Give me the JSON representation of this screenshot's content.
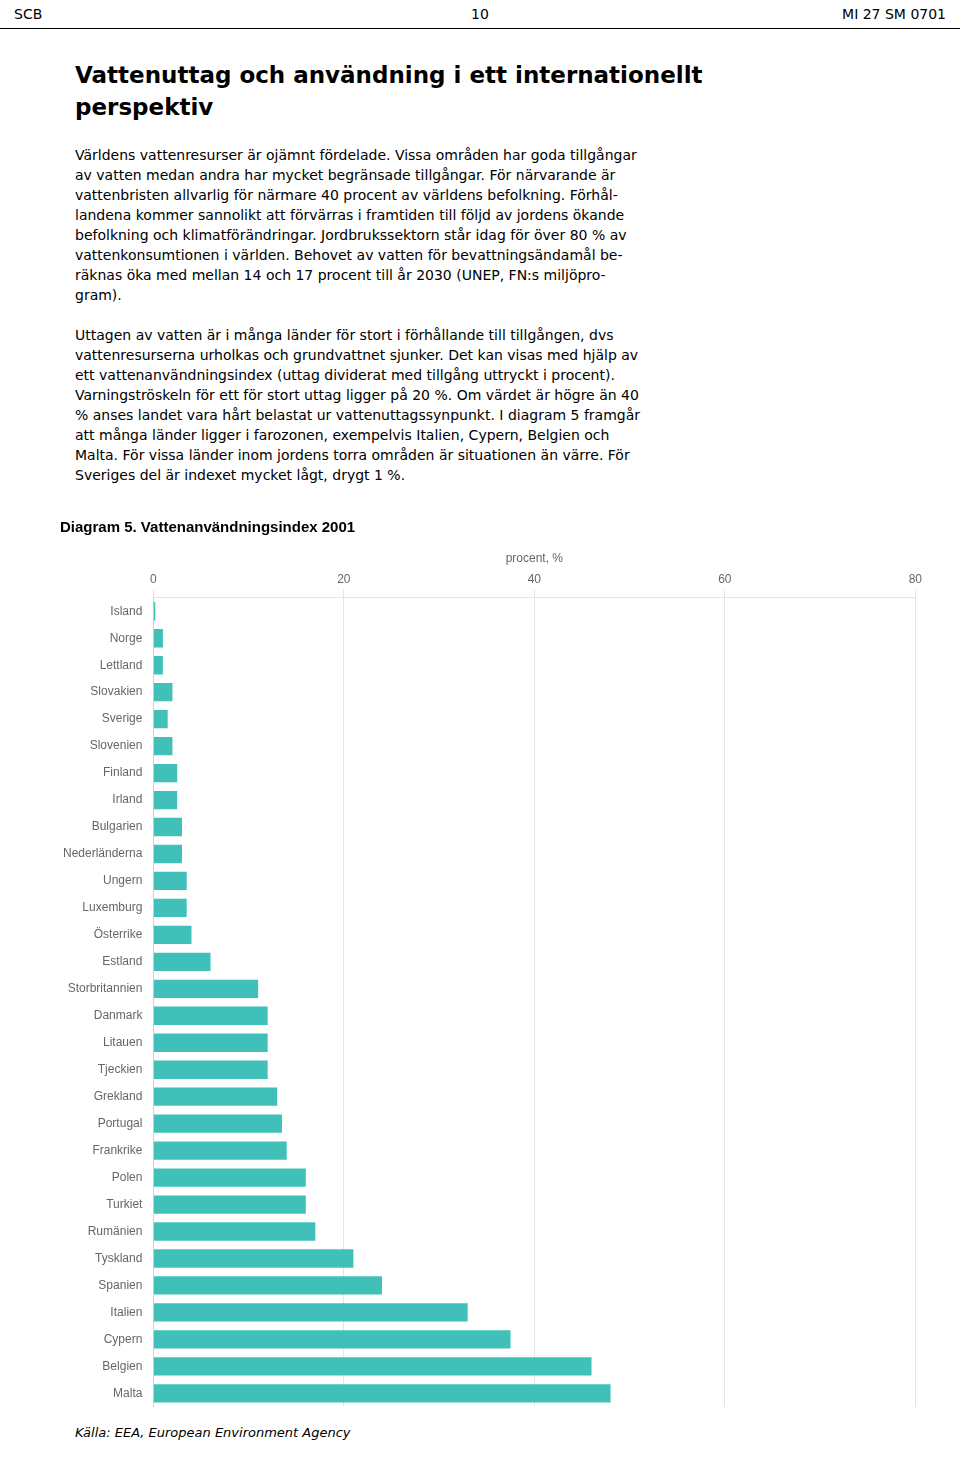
{
  "page_header": [
    "SCB",
    "10",
    "MI 27 SM 0701"
  ],
  "heading": [
    "Vattenuttag och användning i ett internationellt",
    "perspektiv"
  ],
  "paragraphs": [
    [
      "Världens vattenresurser är ojämnt fördelade. Vissa områden har goda tillgångar",
      "av vatten medan andra har mycket begränsade tillgångar. För närvarande är",
      "vattenbristen allvarlig för närmare 40 procent av världens befolkning. Förhål-",
      "landena kommer sannolikt att förvärras i framtiden till följd av jordens ökande",
      "befolkning och klimatförändringar. Jordbrukssektorn står idag för över 80 % av",
      "vattenkonsumtionen i världen. Behovet av vatten för bevattningsändamål be-",
      "räknas öka med mellan 14 och 17 procent till år 2030 (UNEP, FN:s miljöpro-",
      "gram)."
    ],
    [
      "Uttagen av vatten är i många länder för stort i förhållande till tillgången, dvs",
      "vattenresurserna urholkas och grundvattnet sjunker. Det kan visas med hjälp av",
      "ett vattenanvändningsindex (uttag dividerat med tillgång uttryckt i procent).",
      "Varningströskeln för ett för stort uttag ligger på 20 %. Om värdet är högre än 40",
      "% anses landet vara hårt belastat ur vattenuttagssynpunkt. I diagram 5 framgår",
      "att många länder ligger i farozonen, exempelvis Italien, Cypern, Belgien och",
      "Malta. För vissa länder inom jordens torra områden är situationen än värre. För",
      "Sveriges del är indexet mycket lågt, drygt 1 %."
    ]
  ],
  "chart_data": {
    "type": "bar",
    "orientation": "horizontal",
    "title": "Diagram 5. Vattenanvändningsindex 2001",
    "xlabel": "procent, %",
    "source": "Källa: EEA, European Environment Agency",
    "categories": [
      "Island",
      "Norge",
      "Lettland",
      "Slovakien",
      "Sverige",
      "Slovenien",
      "Finland",
      "Irland",
      "Bulgarien",
      "Nederländerna",
      "Ungern",
      "Luxemburg",
      "Österrike",
      "Estland",
      "Storbritannien",
      "Danmark",
      "Litauen",
      "Tjeckien",
      "Grekland",
      "Portugal",
      "Frankrike",
      "Polen",
      "Turkiet",
      "Rumänien",
      "Tyskland",
      "Spanien",
      "Italien",
      "Cypern",
      "Belgien",
      "Malta"
    ],
    "values": [
      0.2,
      1.0,
      1.0,
      2.0,
      1.5,
      2.0,
      2.5,
      2.5,
      3.0,
      3.0,
      3.5,
      3.5,
      4.0,
      6.0,
      11.0,
      12.0,
      12.0,
      12.0,
      13.0,
      13.5,
      14.0,
      16.0,
      16.0,
      17.0,
      21.0,
      24.0,
      33.0,
      37.5,
      46.0,
      48.0
    ],
    "color": "#40C0B8",
    "xlim": [
      0,
      80
    ],
    "xticks": [
      0,
      20,
      40,
      60,
      80
    ],
    "grid": true
  }
}
